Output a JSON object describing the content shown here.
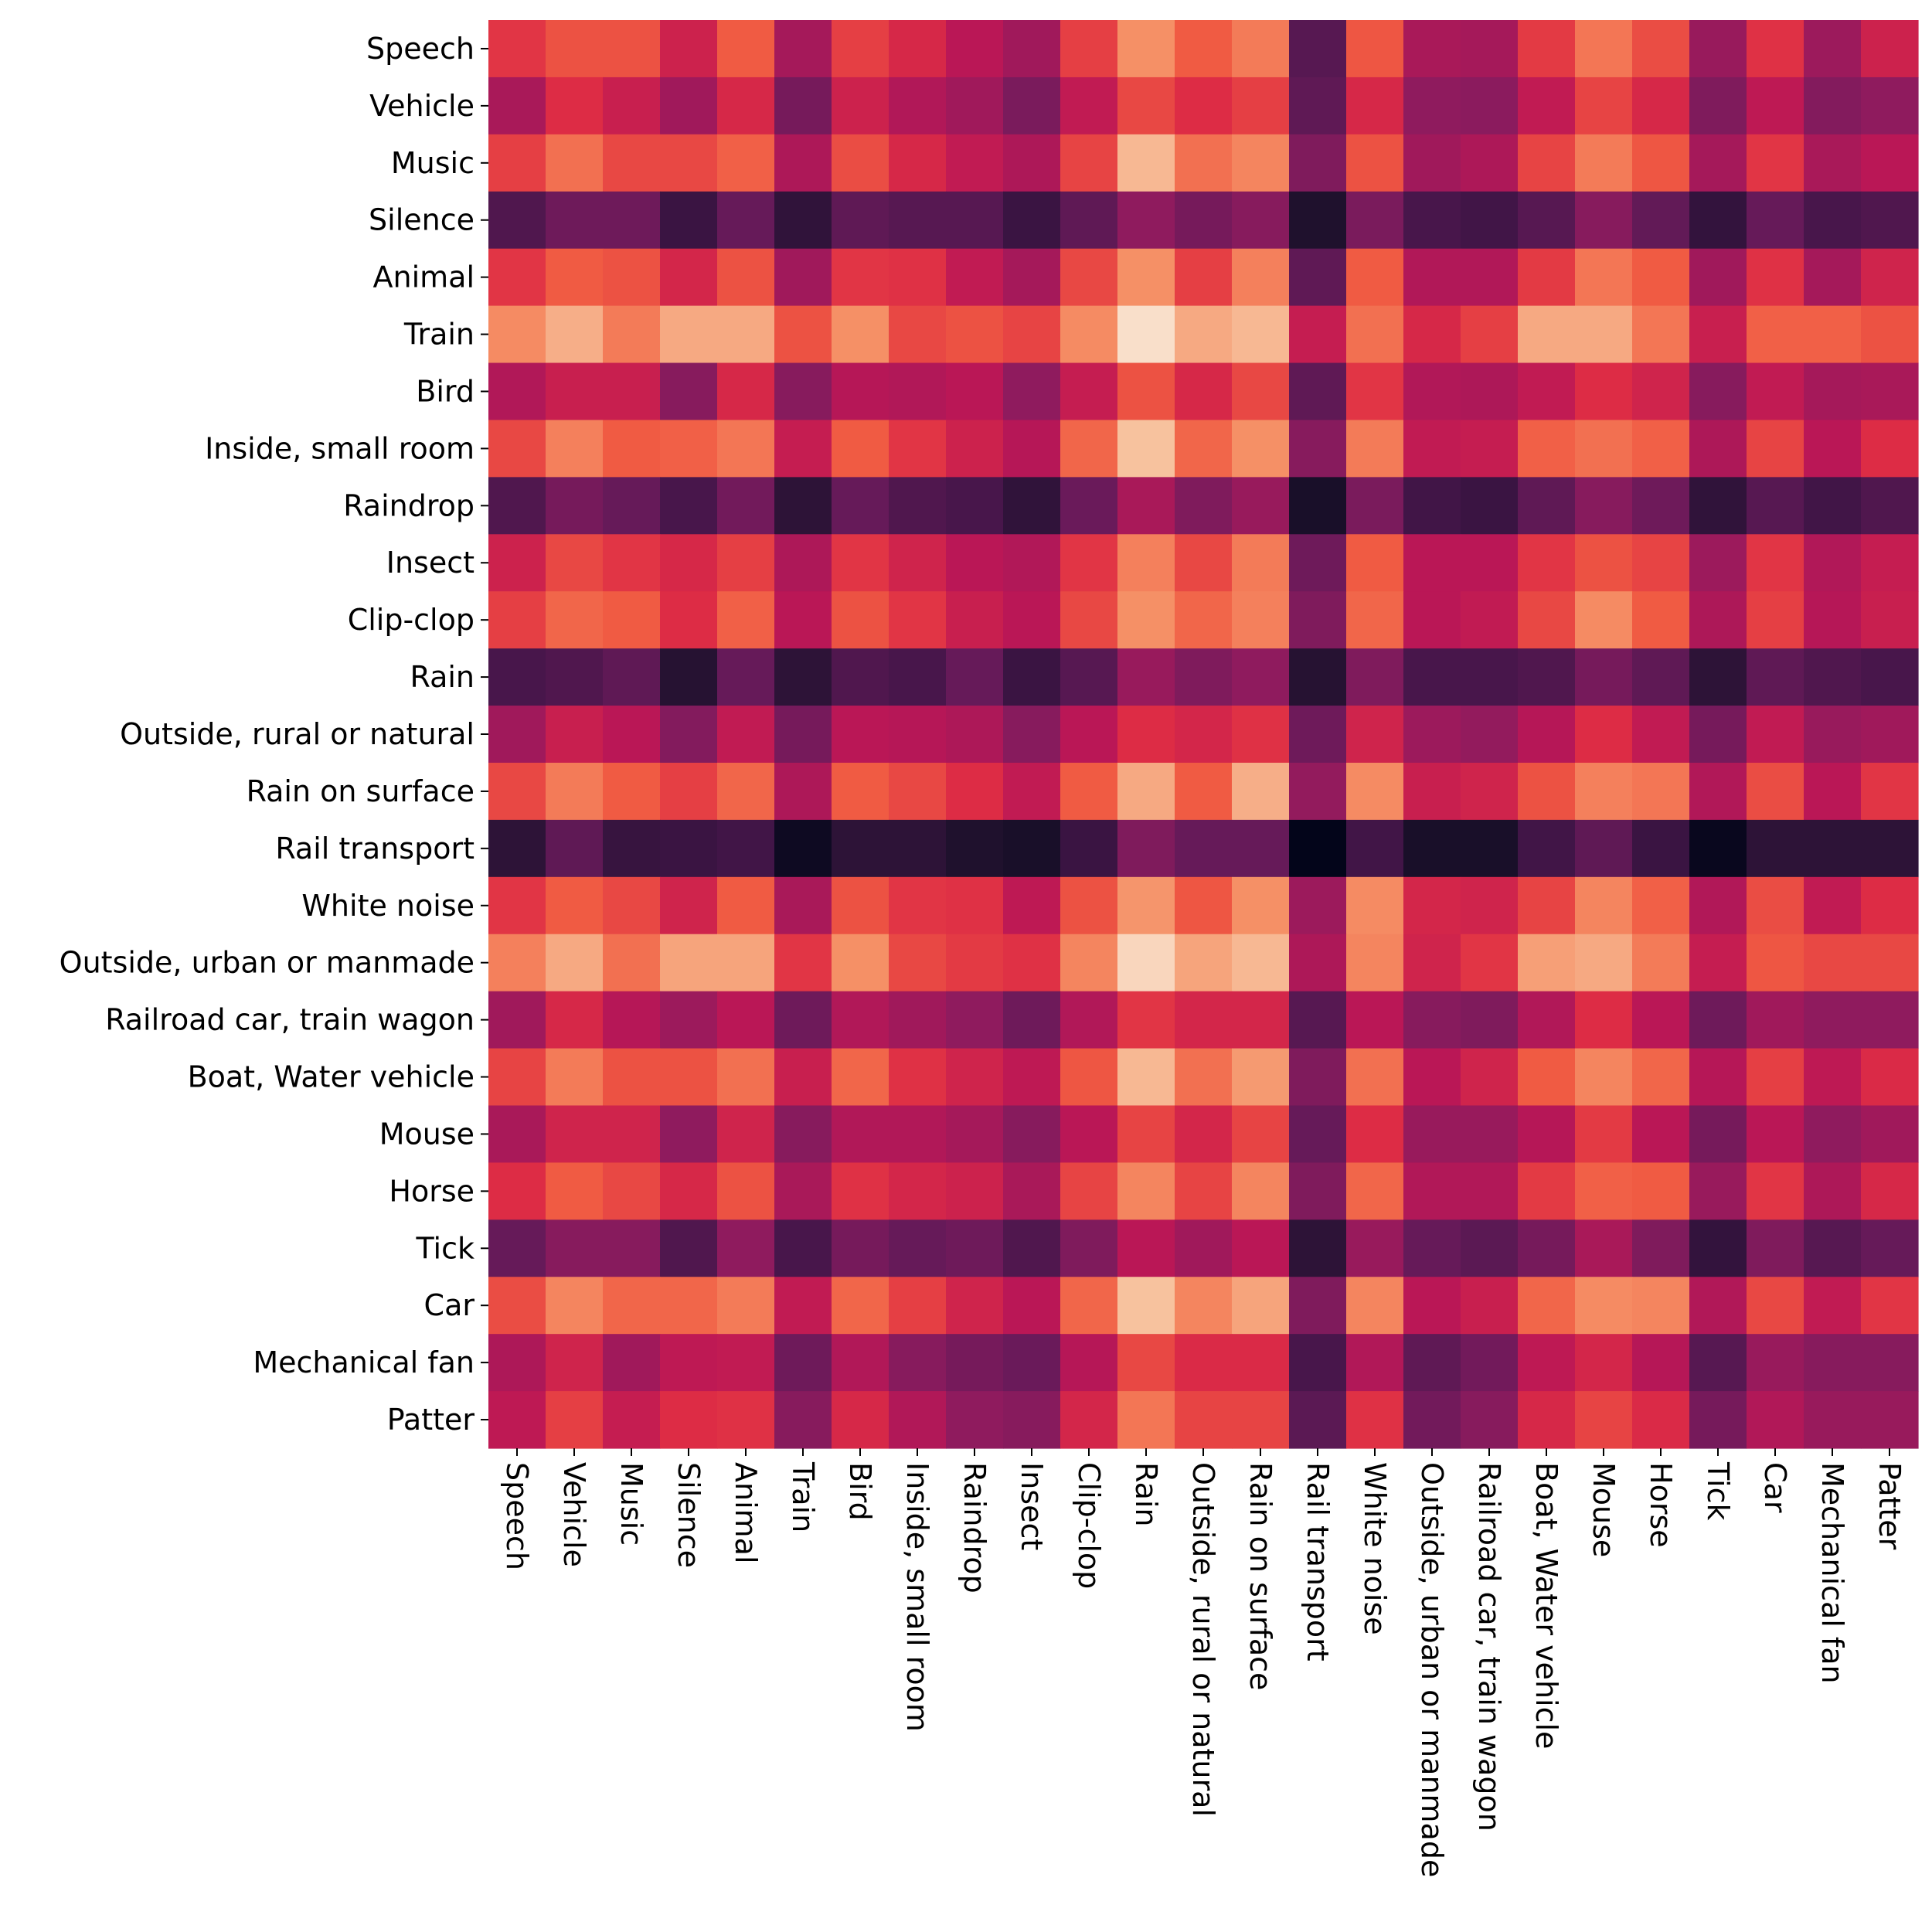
{
  "chart_data": {
    "type": "heatmap",
    "title": "",
    "xlabel": "",
    "ylabel": "",
    "colormap": "rocket",
    "colorbar": false,
    "grid": false,
    "value_range": [
      0,
      1
    ],
    "row_labels": [
      "Speech",
      "Vehicle",
      "Music",
      "Silence",
      "Animal",
      "Train",
      "Bird",
      "Inside, small room",
      "Raindrop",
      "Insect",
      "Clip-clop",
      "Rain",
      "Outside, rural or natural",
      "Rain on surface",
      "Rail transport",
      "White noise",
      "Outside, urban or manmade",
      "Railroad car, train wagon",
      "Boat, Water vehicle",
      "Mouse",
      "Horse",
      "Tick",
      "Car",
      "Mechanical fan",
      "Patter"
    ],
    "col_labels": [
      "Speech",
      "Vehicle",
      "Music",
      "Silence",
      "Animal",
      "Train",
      "Bird",
      "Inside, small room",
      "Raindrop",
      "Insect",
      "Clip-clop",
      "Rain",
      "Outside, rural or natural",
      "Rain on surface",
      "Rail transport",
      "White noise",
      "Outside, urban or manmade",
      "Railroad car, train wagon",
      "Boat, Water vehicle",
      "Mouse",
      "Horse",
      "Tick",
      "Car",
      "Mechanical fan",
      "Patter"
    ],
    "values": [
      [
        0.62,
        0.68,
        0.68,
        0.55,
        0.7,
        0.45,
        0.64,
        0.58,
        0.5,
        0.44,
        0.64,
        0.8,
        0.7,
        0.76,
        0.26,
        0.69,
        0.46,
        0.45,
        0.63,
        0.75,
        0.67,
        0.42,
        0.61,
        0.43,
        0.55
      ],
      [
        0.46,
        0.6,
        0.54,
        0.44,
        0.58,
        0.34,
        0.55,
        0.48,
        0.44,
        0.35,
        0.52,
        0.66,
        0.6,
        0.64,
        0.28,
        0.58,
        0.4,
        0.39,
        0.52,
        0.65,
        0.58,
        0.36,
        0.51,
        0.37,
        0.4
      ],
      [
        0.64,
        0.74,
        0.66,
        0.66,
        0.71,
        0.47,
        0.67,
        0.58,
        0.52,
        0.47,
        0.65,
        0.88,
        0.74,
        0.78,
        0.36,
        0.68,
        0.44,
        0.47,
        0.65,
        0.76,
        0.69,
        0.45,
        0.62,
        0.46,
        0.5
      ],
      [
        0.24,
        0.32,
        0.32,
        0.18,
        0.3,
        0.15,
        0.28,
        0.26,
        0.26,
        0.18,
        0.28,
        0.4,
        0.34,
        0.38,
        0.1,
        0.35,
        0.22,
        0.2,
        0.26,
        0.38,
        0.29,
        0.16,
        0.3,
        0.22,
        0.24
      ],
      [
        0.62,
        0.7,
        0.68,
        0.57,
        0.68,
        0.44,
        0.62,
        0.61,
        0.52,
        0.45,
        0.66,
        0.8,
        0.64,
        0.77,
        0.28,
        0.7,
        0.48,
        0.48,
        0.63,
        0.75,
        0.7,
        0.44,
        0.61,
        0.45,
        0.56
      ],
      [
        0.79,
        0.86,
        0.76,
        0.85,
        0.85,
        0.68,
        0.8,
        0.66,
        0.68,
        0.65,
        0.79,
        0.97,
        0.85,
        0.88,
        0.53,
        0.74,
        0.58,
        0.64,
        0.85,
        0.85,
        0.75,
        0.54,
        0.71,
        0.71,
        0.68
      ],
      [
        0.48,
        0.54,
        0.54,
        0.38,
        0.58,
        0.38,
        0.49,
        0.48,
        0.5,
        0.4,
        0.53,
        0.68,
        0.58,
        0.66,
        0.28,
        0.62,
        0.48,
        0.47,
        0.52,
        0.6,
        0.56,
        0.38,
        0.52,
        0.45,
        0.46
      ],
      [
        0.66,
        0.77,
        0.7,
        0.71,
        0.75,
        0.53,
        0.7,
        0.62,
        0.55,
        0.49,
        0.72,
        0.9,
        0.72,
        0.8,
        0.38,
        0.76,
        0.52,
        0.53,
        0.71,
        0.74,
        0.71,
        0.47,
        0.65,
        0.5,
        0.6
      ],
      [
        0.24,
        0.34,
        0.3,
        0.22,
        0.33,
        0.14,
        0.3,
        0.24,
        0.22,
        0.15,
        0.31,
        0.46,
        0.36,
        0.42,
        0.08,
        0.35,
        0.2,
        0.18,
        0.28,
        0.38,
        0.32,
        0.15,
        0.26,
        0.2,
        0.24
      ],
      [
        0.55,
        0.66,
        0.62,
        0.58,
        0.64,
        0.47,
        0.62,
        0.56,
        0.5,
        0.48,
        0.62,
        0.77,
        0.66,
        0.76,
        0.32,
        0.7,
        0.5,
        0.5,
        0.62,
        0.68,
        0.65,
        0.43,
        0.62,
        0.48,
        0.53
      ],
      [
        0.64,
        0.72,
        0.7,
        0.6,
        0.71,
        0.5,
        0.68,
        0.62,
        0.54,
        0.5,
        0.66,
        0.8,
        0.72,
        0.77,
        0.36,
        0.72,
        0.5,
        0.52,
        0.66,
        0.79,
        0.7,
        0.47,
        0.64,
        0.49,
        0.54
      ],
      [
        0.22,
        0.24,
        0.28,
        0.12,
        0.3,
        0.14,
        0.24,
        0.22,
        0.3,
        0.18,
        0.26,
        0.42,
        0.36,
        0.4,
        0.12,
        0.36,
        0.22,
        0.22,
        0.24,
        0.34,
        0.28,
        0.14,
        0.28,
        0.24,
        0.22
      ],
      [
        0.44,
        0.54,
        0.5,
        0.37,
        0.52,
        0.34,
        0.5,
        0.49,
        0.47,
        0.38,
        0.5,
        0.6,
        0.57,
        0.61,
        0.32,
        0.56,
        0.43,
        0.41,
        0.49,
        0.6,
        0.52,
        0.34,
        0.52,
        0.42,
        0.44
      ],
      [
        0.66,
        0.76,
        0.7,
        0.64,
        0.72,
        0.47,
        0.7,
        0.66,
        0.6,
        0.52,
        0.7,
        0.85,
        0.7,
        0.86,
        0.41,
        0.79,
        0.54,
        0.56,
        0.68,
        0.77,
        0.75,
        0.48,
        0.67,
        0.5,
        0.62
      ],
      [
        0.14,
        0.28,
        0.17,
        0.18,
        0.2,
        0.04,
        0.14,
        0.14,
        0.1,
        0.08,
        0.18,
        0.36,
        0.3,
        0.3,
        0.0,
        0.2,
        0.08,
        0.08,
        0.2,
        0.28,
        0.18,
        0.02,
        0.14,
        0.14,
        0.14
      ],
      [
        0.62,
        0.7,
        0.66,
        0.56,
        0.7,
        0.46,
        0.68,
        0.62,
        0.61,
        0.51,
        0.68,
        0.81,
        0.69,
        0.8,
        0.43,
        0.79,
        0.57,
        0.56,
        0.65,
        0.78,
        0.71,
        0.48,
        0.67,
        0.52,
        0.6
      ],
      [
        0.77,
        0.85,
        0.74,
        0.84,
        0.84,
        0.62,
        0.8,
        0.66,
        0.63,
        0.61,
        0.78,
        0.95,
        0.84,
        0.88,
        0.47,
        0.78,
        0.56,
        0.62,
        0.83,
        0.85,
        0.76,
        0.53,
        0.69,
        0.66,
        0.66
      ],
      [
        0.44,
        0.58,
        0.49,
        0.43,
        0.5,
        0.32,
        0.48,
        0.44,
        0.4,
        0.32,
        0.48,
        0.62,
        0.57,
        0.57,
        0.26,
        0.5,
        0.38,
        0.36,
        0.48,
        0.6,
        0.5,
        0.32,
        0.44,
        0.4,
        0.4
      ],
      [
        0.65,
        0.76,
        0.68,
        0.68,
        0.74,
        0.54,
        0.72,
        0.61,
        0.56,
        0.51,
        0.69,
        0.88,
        0.74,
        0.82,
        0.36,
        0.74,
        0.5,
        0.56,
        0.7,
        0.78,
        0.72,
        0.49,
        0.64,
        0.51,
        0.59
      ],
      [
        0.46,
        0.56,
        0.56,
        0.4,
        0.56,
        0.38,
        0.48,
        0.48,
        0.45,
        0.38,
        0.5,
        0.65,
        0.57,
        0.65,
        0.3,
        0.6,
        0.42,
        0.42,
        0.49,
        0.63,
        0.5,
        0.34,
        0.5,
        0.4,
        0.44
      ],
      [
        0.6,
        0.7,
        0.66,
        0.58,
        0.68,
        0.46,
        0.61,
        0.57,
        0.55,
        0.46,
        0.65,
        0.78,
        0.65,
        0.78,
        0.36,
        0.72,
        0.48,
        0.48,
        0.63,
        0.71,
        0.7,
        0.42,
        0.62,
        0.47,
        0.58
      ],
      [
        0.3,
        0.38,
        0.38,
        0.24,
        0.4,
        0.22,
        0.34,
        0.3,
        0.32,
        0.24,
        0.36,
        0.5,
        0.44,
        0.5,
        0.14,
        0.42,
        0.3,
        0.27,
        0.34,
        0.46,
        0.36,
        0.16,
        0.36,
        0.26,
        0.3
      ],
      [
        0.67,
        0.78,
        0.72,
        0.72,
        0.76,
        0.52,
        0.72,
        0.64,
        0.56,
        0.5,
        0.72,
        0.9,
        0.78,
        0.84,
        0.36,
        0.78,
        0.5,
        0.54,
        0.72,
        0.79,
        0.78,
        0.48,
        0.66,
        0.52,
        0.62
      ],
      [
        0.47,
        0.56,
        0.44,
        0.51,
        0.52,
        0.32,
        0.48,
        0.38,
        0.34,
        0.31,
        0.49,
        0.66,
        0.59,
        0.59,
        0.22,
        0.48,
        0.28,
        0.33,
        0.51,
        0.57,
        0.49,
        0.26,
        0.42,
        0.38,
        0.38
      ],
      [
        0.51,
        0.64,
        0.53,
        0.6,
        0.61,
        0.38,
        0.58,
        0.48,
        0.4,
        0.38,
        0.57,
        0.75,
        0.65,
        0.65,
        0.27,
        0.61,
        0.33,
        0.38,
        0.58,
        0.65,
        0.59,
        0.34,
        0.48,
        0.42,
        0.42
      ]
    ]
  }
}
